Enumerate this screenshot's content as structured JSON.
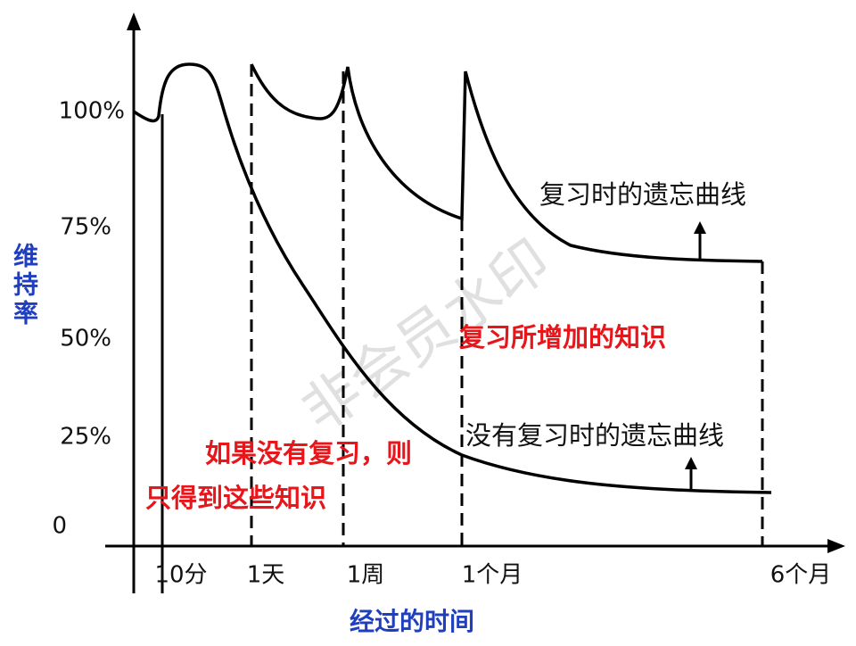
{
  "y_axis": {
    "label": "维持率",
    "ticks": [
      "100%",
      "75%",
      "50%",
      "25%",
      "0"
    ]
  },
  "x_axis": {
    "label": "经过的时间",
    "ticks": [
      "10分",
      "1天",
      "1周",
      "1个月",
      "6个月"
    ]
  },
  "annotations": {
    "review_curve": "复习时的遗忘曲线",
    "gain": "复习所增加的知识",
    "no_review_curve": "没有复习时的遗忘曲线",
    "no_review_line1": "如果没有复习，则",
    "no_review_line2": "只得到这些知识"
  },
  "watermark": "非会员水印"
}
